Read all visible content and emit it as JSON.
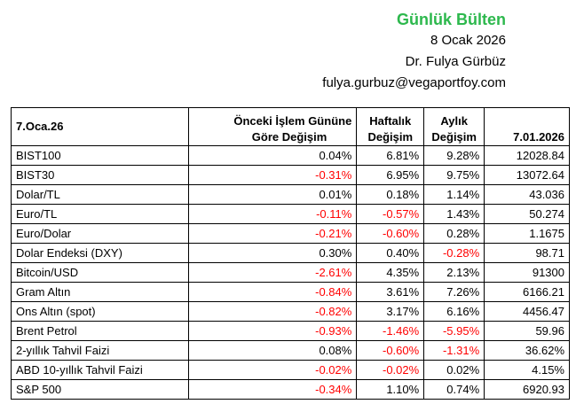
{
  "header": {
    "title": "Günlük Bülten",
    "date": "8 Ocak 2026",
    "author": "Dr. Fulya Gürbüz",
    "email": "fulya.gurbuz@vegaportfoy.com"
  },
  "table": {
    "headers": {
      "date": "7.Oca.26",
      "onceki_line1": "Önceki İşlem Gününe",
      "onceki_line2": "Göre Değişim",
      "haftalik_line1": "Haftalık",
      "haftalik_line2": "Değişim",
      "aylik_line1": "Aylık",
      "aylik_line2": "Değişim",
      "value_date": "7.01.2026"
    },
    "rows": [
      {
        "name": "BIST100",
        "onceki": "0.04%",
        "haftalik": "6.81%",
        "aylik": "9.28%",
        "value": "12028.84"
      },
      {
        "name": "BIST30",
        "onceki": "-0.31%",
        "haftalik": "6.95%",
        "aylik": "9.75%",
        "value": "13072.64"
      },
      {
        "name": "Dolar/TL",
        "onceki": "0.01%",
        "haftalik": "0.18%",
        "aylik": "1.14%",
        "value": "43.036"
      },
      {
        "name": "Euro/TL",
        "onceki": "-0.11%",
        "haftalik": "-0.57%",
        "aylik": "1.43%",
        "value": "50.274"
      },
      {
        "name": "Euro/Dolar",
        "onceki": "-0.21%",
        "haftalik": "-0.60%",
        "aylik": "0.28%",
        "value": "1.1675"
      },
      {
        "name": "Dolar Endeksi (DXY)",
        "onceki": "0.30%",
        "haftalik": "0.40%",
        "aylik": "-0.28%",
        "value": "98.71"
      },
      {
        "name": "Bitcoin/USD",
        "onceki": "-2.61%",
        "haftalik": "4.35%",
        "aylik": "2.13%",
        "value": "91300"
      },
      {
        "name": "Gram Altın",
        "onceki": "-0.84%",
        "haftalik": "3.61%",
        "aylik": "7.26%",
        "value": "6166.21"
      },
      {
        "name": "Ons Altın (spot)",
        "onceki": "-0.82%",
        "haftalik": "3.17%",
        "aylik": "6.16%",
        "value": "4456.47"
      },
      {
        "name": "Brent Petrol",
        "onceki": "-0.93%",
        "haftalik": "-1.46%",
        "aylik": "-5.95%",
        "value": "59.96"
      },
      {
        "name": "2-yıllık Tahvil Faizi",
        "onceki": "0.08%",
        "haftalik": "-0.60%",
        "aylik": "-1.31%",
        "value": "36.62%"
      },
      {
        "name": "ABD 10-yıllık Tahvil Faizi",
        "onceki": "-0.02%",
        "haftalik": "-0.02%",
        "aylik": "0.02%",
        "value": "4.15%"
      },
      {
        "name": "S&P 500",
        "onceki": "-0.34%",
        "haftalik": "1.10%",
        "aylik": "0.74%",
        "value": "6920.93"
      }
    ]
  },
  "colors": {
    "title_green": "#2db84d",
    "negative_red": "#ff0000"
  }
}
